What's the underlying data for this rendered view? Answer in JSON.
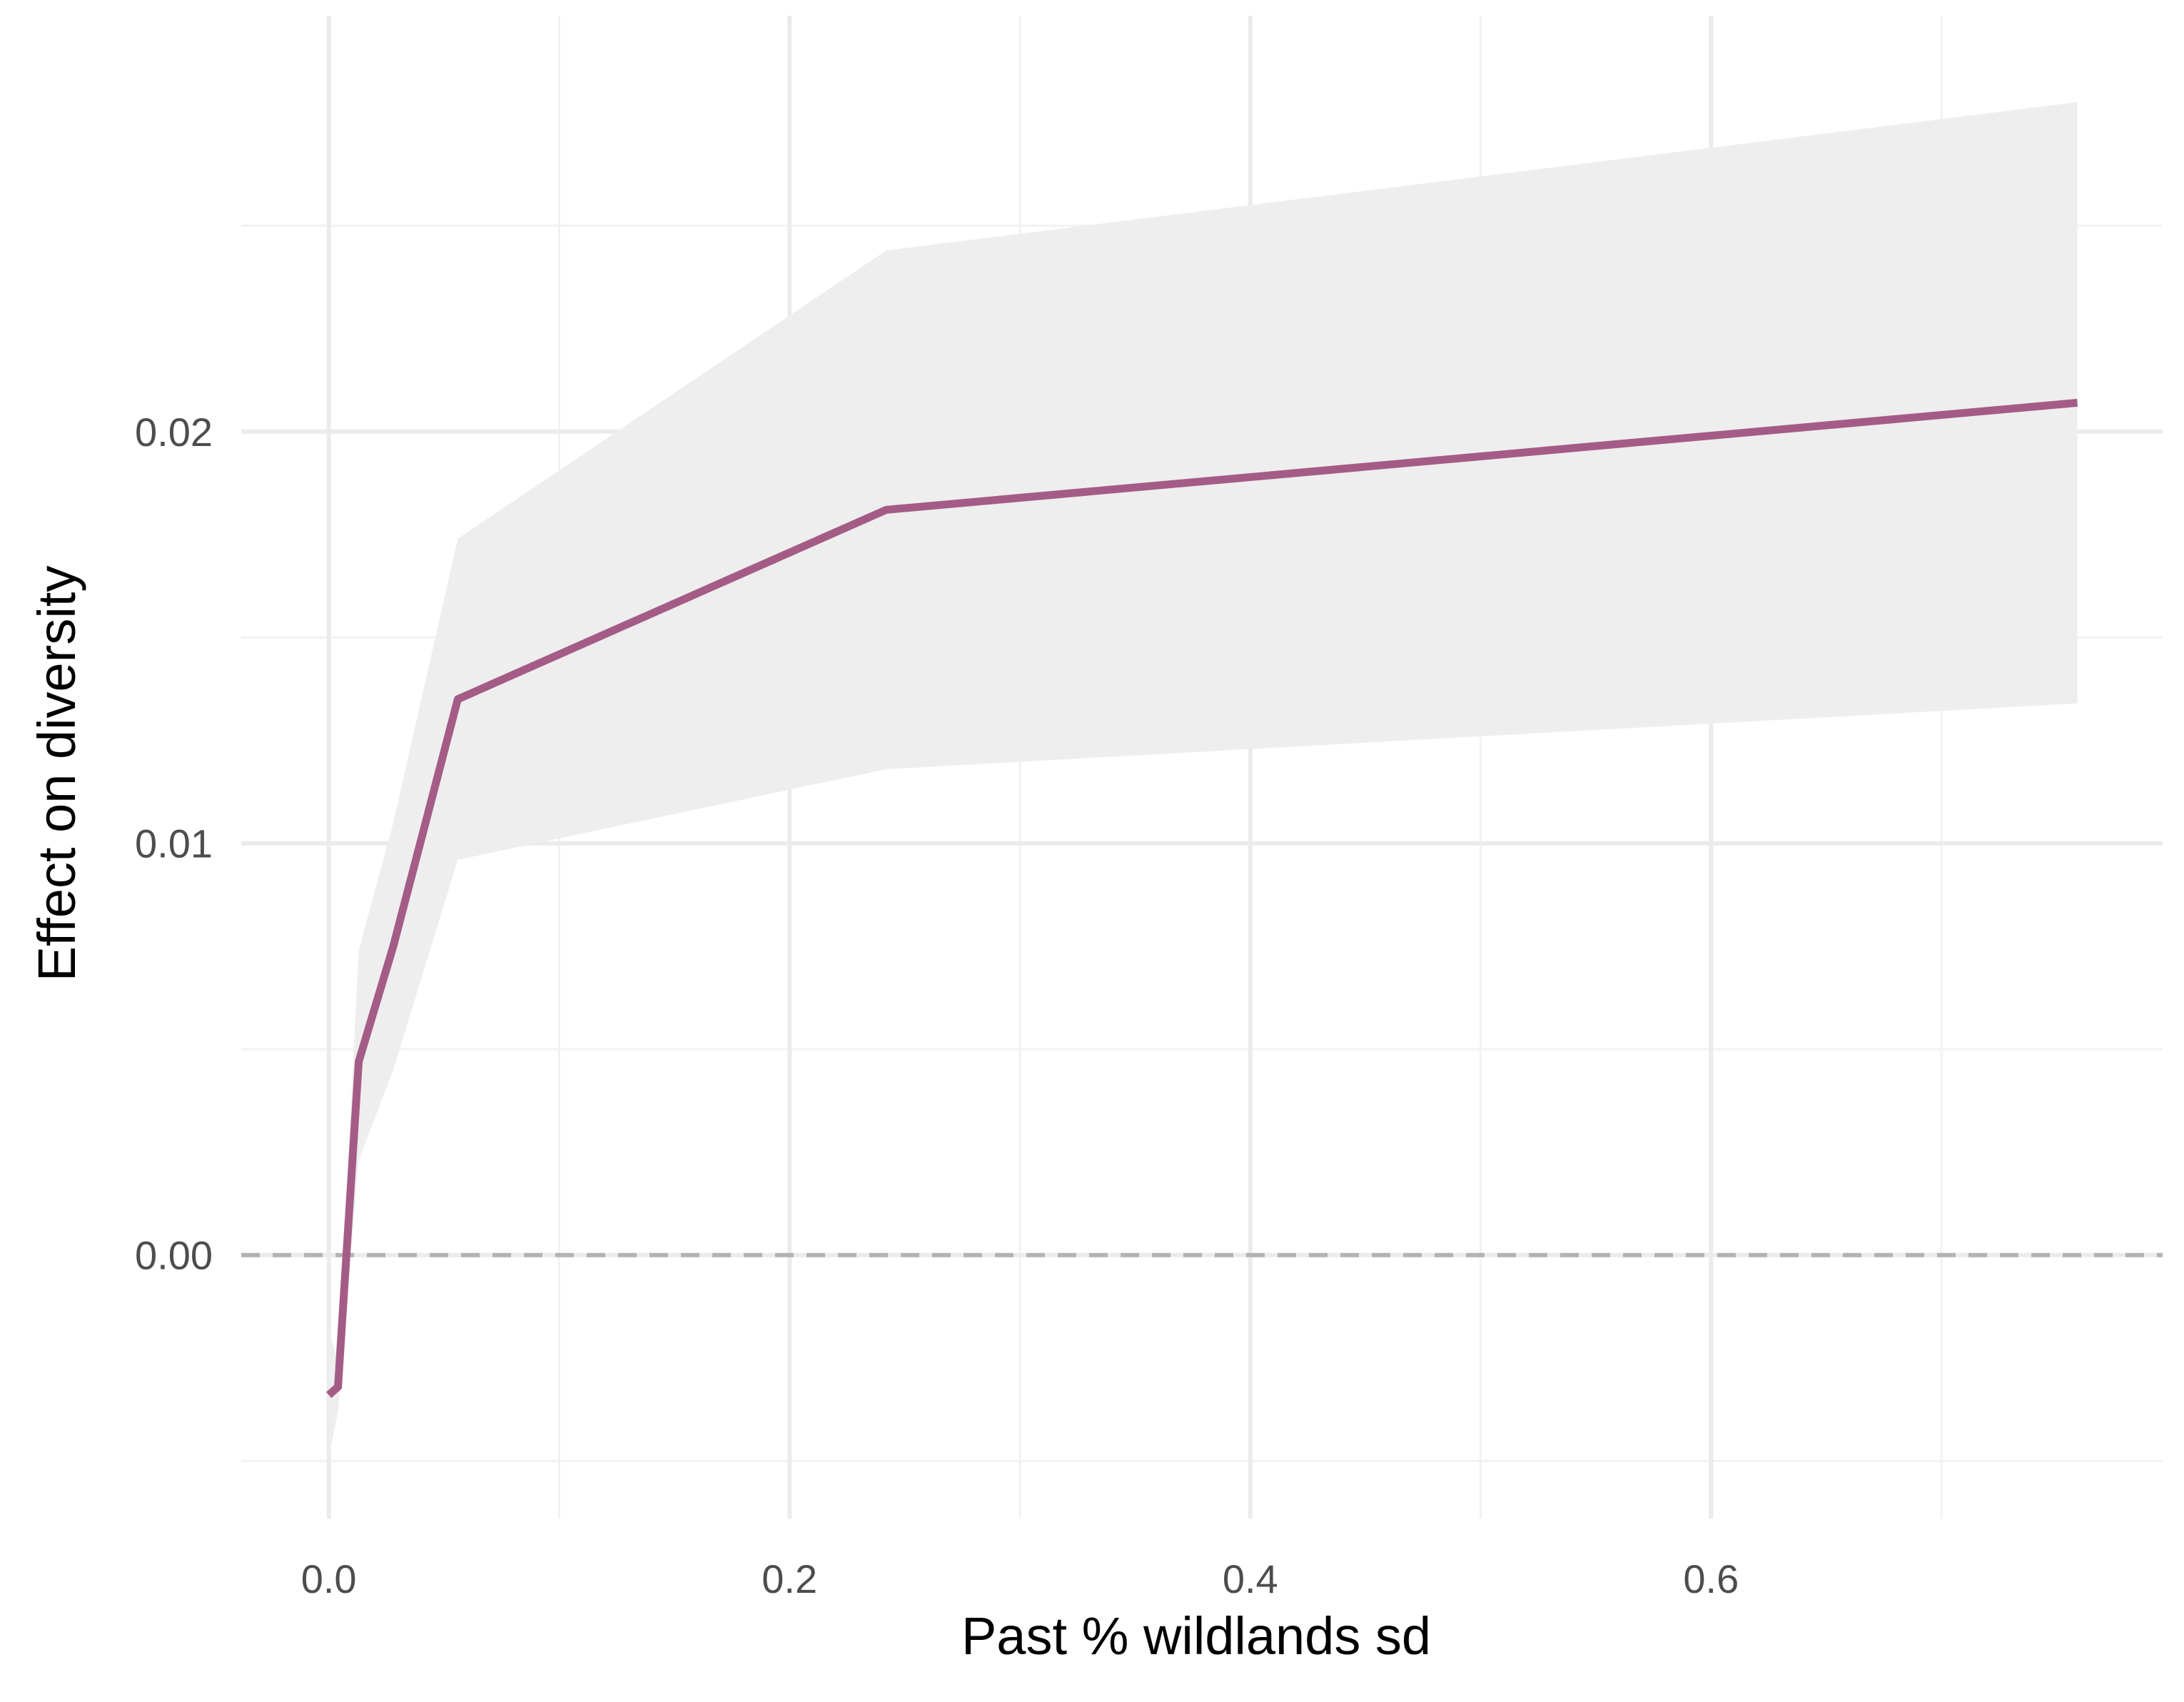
{
  "chart_data": {
    "type": "line",
    "title": "",
    "xlabel": "Past % wildlands sd",
    "ylabel": "Effect on diversity",
    "xlim": [
      -0.038,
      0.796
    ],
    "ylim": [
      -0.0064,
      0.0301
    ],
    "x_ticks": [
      0.0,
      0.2,
      0.4,
      0.6
    ],
    "x_tick_labels": [
      "0.0",
      "0.2",
      "0.4",
      "0.6"
    ],
    "y_ticks": [
      0.0,
      0.01,
      0.02
    ],
    "y_tick_labels": [
      "0.00",
      "0.01",
      "0.02"
    ],
    "grid": true,
    "reference_line": {
      "y": 0,
      "style": "dashed"
    },
    "series": [
      {
        "x": [
          0.0,
          0.004,
          0.013,
          0.028,
          0.056,
          0.242,
          0.759
        ],
        "y": [
          -0.0034,
          -0.0032,
          0.0047,
          0.0075,
          0.0135,
          0.0181,
          0.0207
        ],
        "lower": [
          -0.0049,
          -0.0038,
          0.0023,
          0.0045,
          0.0096,
          0.0118,
          0.0134
        ],
        "upper": [
          -0.0018,
          -0.0026,
          0.0074,
          0.0105,
          0.0174,
          0.0244,
          0.028
        ]
      }
    ],
    "colors": {
      "line": "#a45c87",
      "ribbon": "#eeeeee",
      "grid_major": "#ebebeb",
      "grid_minor": "#f2f2f2",
      "reference": "#b3b3b3"
    }
  }
}
